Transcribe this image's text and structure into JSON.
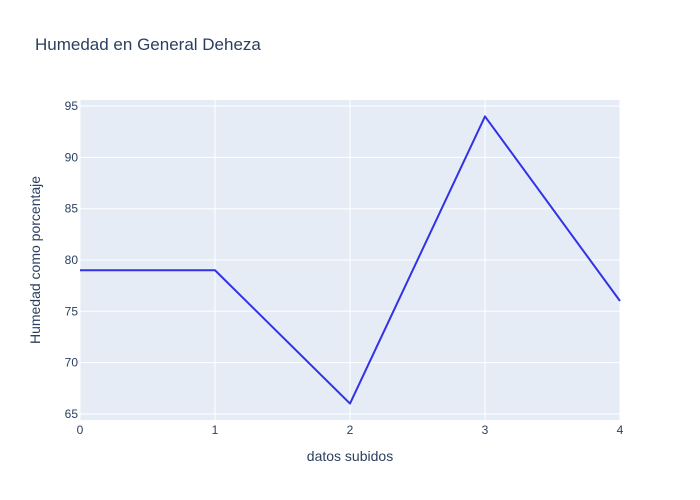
{
  "chart_data": {
    "type": "line",
    "title": "Humedad en General Deheza",
    "xlabel": "datos subidos",
    "ylabel": "Humedad como porcentaje",
    "x": [
      0,
      1,
      2,
      3,
      4
    ],
    "series": [
      {
        "values": [
          79,
          79,
          66,
          94,
          76
        ],
        "color": "#3232e6"
      }
    ],
    "xticks": [
      0,
      1,
      2,
      3,
      4
    ],
    "yticks": [
      65,
      70,
      75,
      80,
      85,
      90,
      95
    ],
    "xlim": [
      0,
      4
    ],
    "ylim": [
      64.4,
      95.6
    ],
    "grid": true,
    "plot_bg": "#e5ecf6",
    "grid_color": "#ffffff",
    "text_color": "#2a3f5f"
  }
}
